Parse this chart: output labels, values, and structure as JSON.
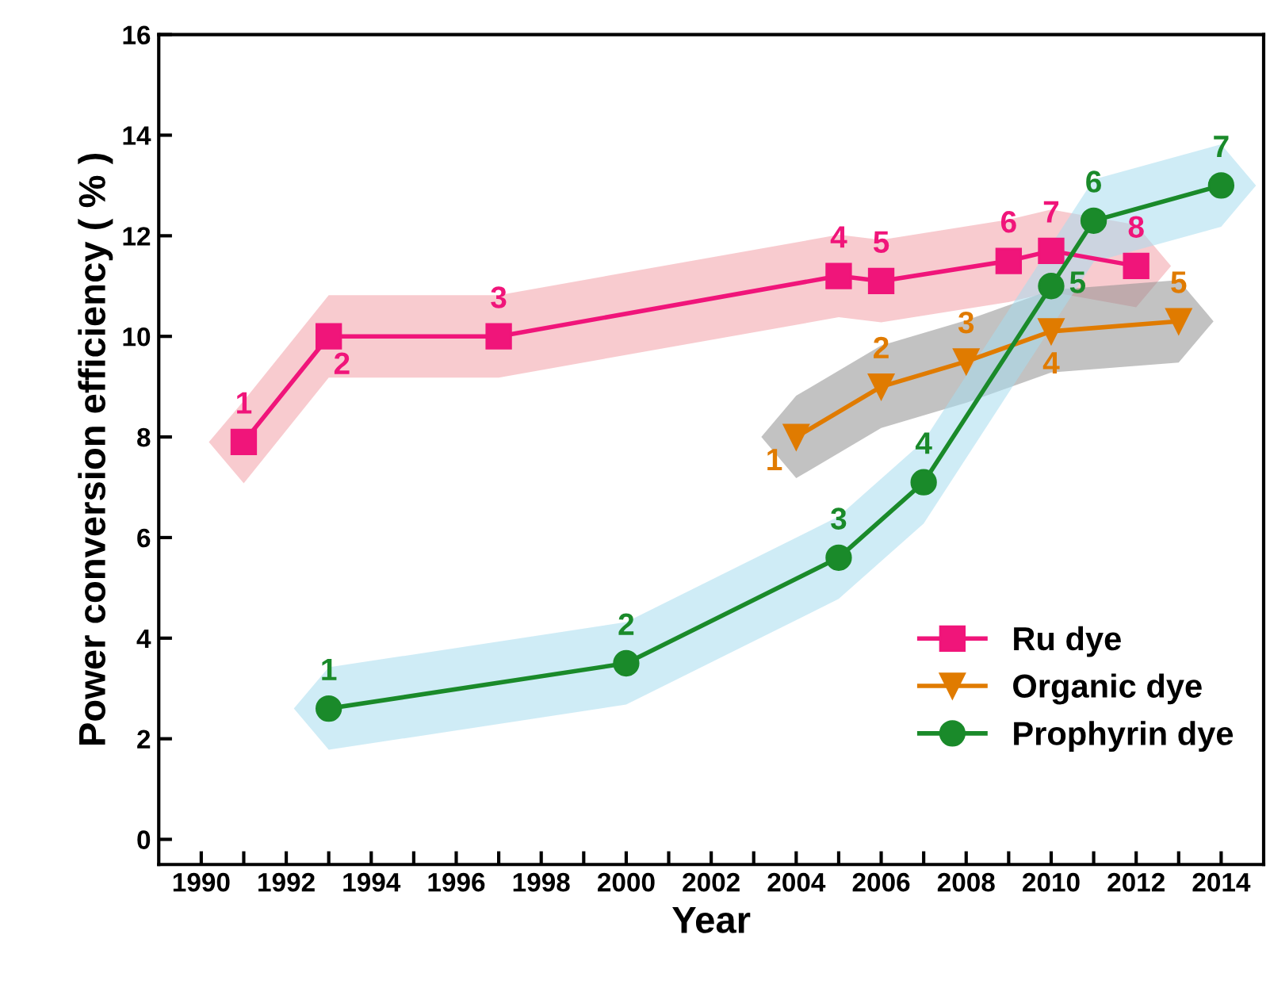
{
  "chart_data": {
    "type": "line",
    "xlabel": "Year",
    "ylabel": "Power conversion efficiency ( % )",
    "xlim": [
      1989,
      2015
    ],
    "ylim": [
      -0.5,
      16
    ],
    "xticks": [
      1990,
      {
        "value": 1991,
        "label": null
      },
      1992,
      {
        "value": 1993,
        "label": null
      },
      1994,
      {
        "value": 1995,
        "label": null
      },
      1996,
      {
        "value": 1997,
        "label": null
      },
      1998,
      {
        "value": 1999,
        "label": null
      },
      2000,
      {
        "value": 2001,
        "label": null
      },
      2002,
      {
        "value": 2003,
        "label": null
      },
      2004,
      {
        "value": 2005,
        "label": null
      },
      2006,
      {
        "value": 2007,
        "label": null
      },
      2008,
      {
        "value": 2009,
        "label": null
      },
      2010,
      {
        "value": 2011,
        "label": null
      },
      2012,
      {
        "value": 2013,
        "label": null
      },
      2014
    ],
    "yticks": [
      0,
      2,
      4,
      6,
      8,
      10,
      12,
      14,
      16
    ],
    "grid": false,
    "legend": "lower right",
    "annotations": [
      {
        "text": "1",
        "x": 1991,
        "y": 7.9
      },
      {
        "text": "2",
        "x": 1993,
        "y": 10.0
      },
      {
        "text": "3",
        "x": 1997,
        "y": 10.0
      },
      {
        "text": "4",
        "x": 2005,
        "y": 11.2
      },
      {
        "text": "5",
        "x": 2006,
        "y": 11.1
      },
      {
        "text": "6",
        "x": 2009,
        "y": 11.5
      },
      {
        "text": "7",
        "x": 2010,
        "y": 11.7
      },
      {
        "text": "8",
        "x": 2012,
        "y": 11.4
      },
      {
        "text": "1",
        "x": 2004,
        "y": 8.0
      },
      {
        "text": "2",
        "x": 2006,
        "y": 9.0
      },
      {
        "text": "3",
        "x": 2008,
        "y": 9.5
      },
      {
        "text": "4",
        "x": 2010,
        "y": 10.1
      },
      {
        "text": "5",
        "x": 2013,
        "y": 10.3
      },
      {
        "text": "1",
        "x": 1993,
        "y": 2.6
      },
      {
        "text": "2",
        "x": 2000,
        "y": 3.5
      },
      {
        "text": "3",
        "x": 2005,
        "y": 5.6
      },
      {
        "text": "4",
        "x": 2007,
        "y": 7.1
      },
      {
        "text": "5",
        "x": 2010,
        "y": 11.0
      },
      {
        "text": "6",
        "x": 2011,
        "y": 12.3
      },
      {
        "text": "7",
        "x": 2014,
        "y": 13.0
      }
    ],
    "series": [
      {
        "name": "Ru dye",
        "color": "#f0157a",
        "marker": "square",
        "x": [
          1991,
          1993,
          1997,
          2005,
          2006,
          2009,
          2010,
          2012
        ],
        "values": [
          7.9,
          10.0,
          10.0,
          11.2,
          11.1,
          11.5,
          11.7,
          11.4
        ]
      },
      {
        "name": "Organic dye",
        "color": "#e07b00",
        "marker": "triangle",
        "x": [
          2004,
          2006,
          2008,
          2010,
          2013
        ],
        "values": [
          8.0,
          9.0,
          9.5,
          10.1,
          10.3
        ]
      },
      {
        "name": "Prophyrin dye",
        "color": "#1a8a2a",
        "marker": "circle",
        "x": [
          1993,
          2000,
          2005,
          2007,
          2010,
          2011,
          2014
        ],
        "values": [
          2.6,
          3.5,
          5.6,
          7.1,
          11.0,
          12.3,
          13.0
        ]
      }
    ]
  }
}
